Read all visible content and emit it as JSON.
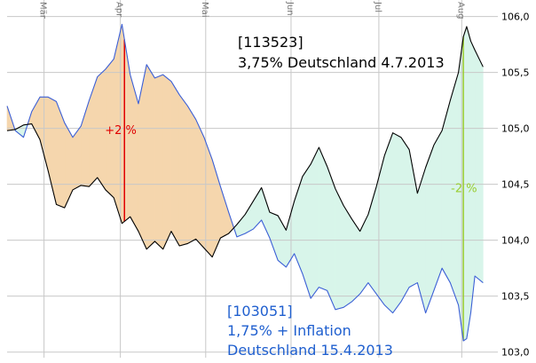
{
  "chart_data": {
    "type": "line",
    "y_axis": {
      "ticks": [
        "106,0",
        "105,5",
        "105,0",
        "104,5",
        "104,0",
        "103,5",
        "103,0"
      ],
      "tick_values": [
        106.0,
        105.5,
        105.0,
        104.5,
        104.0,
        103.5,
        103.0
      ],
      "ylim": [
        102.95,
        106.1
      ]
    },
    "x_axis": {
      "month_labels": [
        "Mär",
        "Apr",
        "Mai",
        "Jun",
        "Jul",
        "Aug"
      ],
      "month_positions": [
        4.5,
        13.8,
        24.2,
        34.6,
        45.3,
        55.4
      ],
      "xlim": [
        0,
        59.8
      ]
    },
    "grid": true,
    "series": [
      {
        "name": "[113523] 3,75% Deutschland 4.7.2013",
        "color": "#000000",
        "x": [
          0,
          1,
          2,
          3,
          4,
          5,
          6,
          7,
          8,
          9,
          10,
          11,
          12,
          13,
          14,
          15,
          16,
          17,
          18,
          19,
          20,
          21,
          22,
          23,
          24,
          25,
          26,
          27,
          28,
          29,
          30,
          31,
          32,
          33,
          34,
          35,
          36,
          37,
          38,
          39,
          40,
          41,
          42,
          43,
          44,
          45,
          46,
          47,
          48,
          49,
          50,
          51,
          52,
          53,
          54,
          55,
          55.6,
          56,
          56.5,
          57,
          58
        ],
        "y": [
          104.98,
          104.99,
          105.03,
          105.04,
          104.9,
          104.62,
          104.32,
          104.29,
          104.45,
          104.49,
          104.48,
          104.56,
          104.45,
          104.38,
          104.15,
          104.21,
          104.08,
          103.92,
          103.99,
          103.92,
          104.08,
          103.95,
          103.97,
          104.01,
          103.93,
          103.85,
          104.02,
          104.06,
          104.14,
          104.23,
          104.35,
          104.47,
          104.25,
          104.22,
          104.09,
          104.35,
          104.57,
          104.68,
          104.83,
          104.66,
          104.46,
          104.31,
          104.19,
          104.08,
          104.23,
          104.48,
          104.76,
          104.96,
          104.92,
          104.81,
          104.42,
          104.65,
          104.85,
          104.98,
          105.25,
          105.5,
          105.82,
          105.91,
          105.78,
          105.7,
          105.55
        ]
      },
      {
        "name": "[103051] 1,75% + Inflation Deutschland 15.4.2013",
        "color": "#3b5fd6",
        "x": [
          0,
          1,
          2,
          3,
          4,
          5,
          6,
          7,
          8,
          9,
          10,
          11,
          12,
          13,
          14,
          15,
          16,
          17,
          18,
          19,
          20,
          21,
          22,
          23,
          24,
          25,
          26,
          27,
          28,
          29,
          30,
          31,
          32,
          33,
          34,
          35,
          36,
          37,
          38,
          39,
          40,
          41,
          42,
          43,
          44,
          45,
          46,
          47,
          48,
          49,
          50,
          51,
          52,
          53,
          54,
          55,
          55.6,
          56,
          56.5,
          57,
          58
        ],
        "y": [
          105.2,
          104.98,
          104.92,
          105.15,
          105.28,
          105.28,
          105.24,
          105.05,
          104.92,
          105.02,
          105.25,
          105.46,
          105.53,
          105.62,
          105.93,
          105.48,
          105.22,
          105.57,
          105.45,
          105.48,
          105.42,
          105.3,
          105.2,
          105.08,
          104.92,
          104.72,
          104.48,
          104.25,
          104.03,
          104.06,
          104.1,
          104.18,
          104.02,
          103.82,
          103.76,
          103.88,
          103.7,
          103.48,
          103.58,
          103.55,
          103.38,
          103.4,
          103.45,
          103.52,
          103.62,
          103.52,
          103.42,
          103.35,
          103.45,
          103.58,
          103.62,
          103.35,
          103.55,
          103.75,
          103.62,
          103.42,
          103.1,
          103.12,
          103.35,
          103.68,
          103.62
        ]
      }
    ],
    "annotations": {
      "upper_right": {
        "code": "[113523]",
        "text": "3,75% Deutschland 4.7.2013",
        "color": "#000000"
      },
      "lower_left": {
        "code": "[103051]",
        "line1": "1,75% + Inflation",
        "line2": "Deutschland 15.4.2013",
        "color": "#1f5fcf"
      },
      "plus_marker": {
        "label": "+2 %",
        "x": 14.3,
        "color": "#e00000"
      },
      "minus_marker": {
        "label": "-2 %",
        "x": 55.6,
        "color": "#9acd32"
      }
    },
    "fill_colors": {
      "blue_above": "#f5d6ad",
      "black_above": "#d8f5ea"
    }
  }
}
